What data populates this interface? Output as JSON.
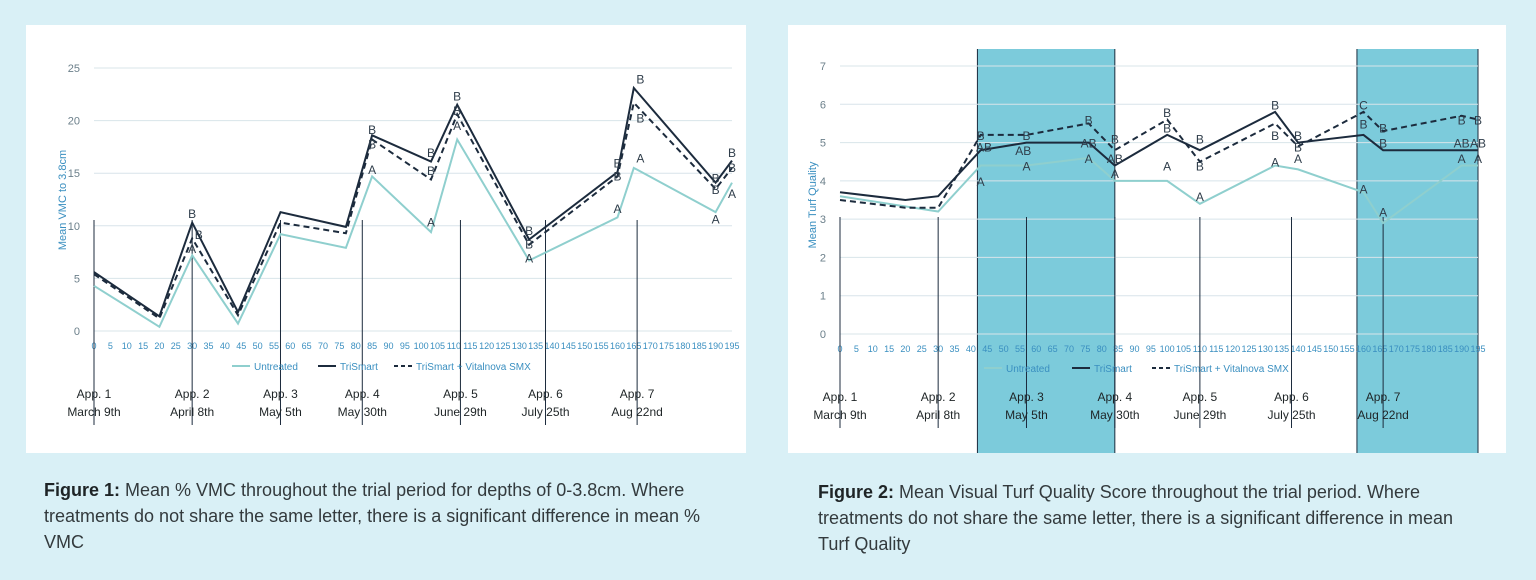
{
  "colors": {
    "untreated": "#8fcfce",
    "trismart": "#1c2b3d",
    "vitalnova": "#1c2b3d",
    "axis_text": "#3a8fc0",
    "grid": "#d8e4ea",
    "highlight": "#7ccbdb",
    "background": "#d9f0f6"
  },
  "chart_data": [
    {
      "type": "line",
      "ylabel": "Mean VMC to 3.8cm",
      "xlabel": "",
      "ylim": [
        0,
        25
      ],
      "y_ticks": [
        0,
        5,
        10,
        15,
        20,
        25
      ],
      "x_ticks": [
        0,
        5,
        10,
        15,
        20,
        25,
        30,
        35,
        40,
        45,
        50,
        55,
        60,
        65,
        70,
        75,
        80,
        85,
        90,
        95,
        100,
        105,
        110,
        115,
        120,
        125,
        130,
        135,
        140,
        145,
        150,
        155,
        160,
        165,
        170,
        175,
        180,
        185,
        190,
        195
      ],
      "grid": "horizontal",
      "legend": "bottom",
      "x": [
        0,
        20,
        30,
        44,
        57,
        77,
        85,
        103,
        111,
        133,
        160,
        165,
        190,
        195
      ],
      "series": [
        {
          "name": "Untreated",
          "style": "solid-light",
          "values": [
            4.3,
            0.4,
            7.2,
            0.7,
            9.2,
            7.9,
            14.7,
            9.4,
            18.2,
            6.7,
            10.8,
            15.5,
            11.3,
            14.1
          ]
        },
        {
          "name": "TriSmart",
          "style": "solid-dark",
          "values": [
            5.6,
            1.4,
            10.3,
            1.8,
            11.3,
            9.9,
            18.6,
            16.1,
            21.5,
            8.7,
            15.1,
            23.1,
            14.1,
            16.2
          ]
        },
        {
          "name": "TriSmart + Vitalnova SMX",
          "style": "dashed",
          "values": [
            5.4,
            1.2,
            8.8,
            1.5,
            10.3,
            9.3,
            18.2,
            14.4,
            20.6,
            8.2,
            14.7,
            21.7,
            13.5,
            15.5
          ]
        }
      ],
      "letters": [
        {
          "x": 30,
          "y": 11.2,
          "t": "B"
        },
        {
          "x": 32,
          "y": 9.2,
          "t": "B"
        },
        {
          "x": 30,
          "y": 7.9,
          "t": "A"
        },
        {
          "x": 85,
          "y": 19.2,
          "t": "B"
        },
        {
          "x": 85,
          "y": 17.8,
          "t": "B"
        },
        {
          "x": 85,
          "y": 15.4,
          "t": "A"
        },
        {
          "x": 103,
          "y": 17.0,
          "t": "B"
        },
        {
          "x": 103,
          "y": 15.3,
          "t": "B"
        },
        {
          "x": 103,
          "y": 10.4,
          "t": "A"
        },
        {
          "x": 111,
          "y": 22.4,
          "t": "B"
        },
        {
          "x": 111,
          "y": 21.0,
          "t": "B"
        },
        {
          "x": 111,
          "y": 19.6,
          "t": "A"
        },
        {
          "x": 133,
          "y": 9.6,
          "t": "B"
        },
        {
          "x": 133,
          "y": 8.3,
          "t": "B"
        },
        {
          "x": 133,
          "y": 7.0,
          "t": "A"
        },
        {
          "x": 160,
          "y": 16.0,
          "t": "B"
        },
        {
          "x": 160,
          "y": 14.8,
          "t": "B"
        },
        {
          "x": 160,
          "y": 11.7,
          "t": "A"
        },
        {
          "x": 167,
          "y": 24.0,
          "t": "B"
        },
        {
          "x": 167,
          "y": 20.3,
          "t": "B"
        },
        {
          "x": 167,
          "y": 16.5,
          "t": "A"
        },
        {
          "x": 190,
          "y": 14.6,
          "t": "B"
        },
        {
          "x": 190,
          "y": 13.5,
          "t": "B"
        },
        {
          "x": 190,
          "y": 10.7,
          "t": "A"
        },
        {
          "x": 195,
          "y": 17.0,
          "t": "B"
        },
        {
          "x": 195,
          "y": 15.6,
          "t": "B"
        },
        {
          "x": 195,
          "y": 13.1,
          "t": "A"
        }
      ],
      "applications": [
        {
          "x": 0,
          "label": "App. 1",
          "date": "March 9th"
        },
        {
          "x": 30,
          "label": "App. 2",
          "date": "April 8th"
        },
        {
          "x": 57,
          "label": "App. 3",
          "date": "May 5th"
        },
        {
          "x": 82,
          "label": "App. 4",
          "date": "May 30th"
        },
        {
          "x": 112,
          "label": "App. 5",
          "date": "June 29th"
        },
        {
          "x": 138,
          "label": "App. 6",
          "date": "July 25th"
        },
        {
          "x": 166,
          "label": "App. 7",
          "date": "Aug 22nd"
        }
      ]
    },
    {
      "type": "line",
      "ylabel": "Mean Turf Quality",
      "xlabel": "",
      "ylim": [
        0,
        7
      ],
      "y_ticks": [
        0,
        1,
        2,
        3,
        4,
        5,
        6,
        7
      ],
      "x_ticks": [
        0,
        5,
        10,
        15,
        20,
        25,
        30,
        35,
        40,
        45,
        50,
        55,
        60,
        65,
        70,
        75,
        80,
        85,
        90,
        95,
        100,
        105,
        110,
        115,
        120,
        125,
        130,
        135,
        140,
        145,
        150,
        155,
        160,
        165,
        170,
        175,
        180,
        185,
        190,
        195
      ],
      "grid": "horizontal",
      "legend": "bottom",
      "highlight_ranges": [
        [
          42,
          84
        ],
        [
          158,
          195
        ]
      ],
      "series": [
        {
          "name": "Untreated",
          "style": "solid-light",
          "x": [
            0,
            30,
            43,
            57,
            76,
            84,
            100,
            110,
            133,
            140,
            160,
            166,
            190,
            195
          ],
          "values": [
            3.6,
            3.2,
            4.4,
            4.4,
            4.6,
            4.0,
            4.0,
            3.4,
            4.4,
            4.3,
            3.7,
            2.9,
            4.4,
            4.4
          ]
        },
        {
          "name": "TriSmart",
          "style": "solid-dark",
          "x": [
            0,
            20,
            30,
            43,
            57,
            76,
            84,
            100,
            110,
            133,
            140,
            160,
            166,
            190,
            195
          ],
          "values": [
            3.7,
            3.5,
            3.6,
            4.8,
            5.0,
            5.0,
            4.4,
            5.2,
            4.8,
            5.8,
            5.0,
            5.2,
            4.8,
            4.8,
            4.8
          ]
        },
        {
          "name": "TriSmart + Vitalnova SMX",
          "style": "dashed",
          "x": [
            0,
            20,
            30,
            43,
            57,
            76,
            84,
            100,
            110,
            133,
            140,
            160,
            166,
            190,
            195
          ],
          "values": [
            3.5,
            3.3,
            3.3,
            5.2,
            5.2,
            5.5,
            4.8,
            5.6,
            4.5,
            5.5,
            4.9,
            5.8,
            5.3,
            5.7,
            5.6
          ]
        }
      ],
      "letters": [
        {
          "x": 43,
          "y": 5.2,
          "t": "B"
        },
        {
          "x": 44,
          "y": 4.9,
          "t": "AB"
        },
        {
          "x": 43,
          "y": 4.0,
          "t": "A"
        },
        {
          "x": 57,
          "y": 5.2,
          "t": "B"
        },
        {
          "x": 56,
          "y": 4.8,
          "t": "AB"
        },
        {
          "x": 57,
          "y": 4.4,
          "t": "A"
        },
        {
          "x": 76,
          "y": 5.6,
          "t": "B"
        },
        {
          "x": 76,
          "y": 5.0,
          "t": "AB"
        },
        {
          "x": 76,
          "y": 4.6,
          "t": "A"
        },
        {
          "x": 84,
          "y": 5.1,
          "t": "B"
        },
        {
          "x": 84,
          "y": 4.6,
          "t": "AB"
        },
        {
          "x": 84,
          "y": 4.2,
          "t": "A"
        },
        {
          "x": 100,
          "y": 5.8,
          "t": "B"
        },
        {
          "x": 100,
          "y": 5.4,
          "t": "B"
        },
        {
          "x": 100,
          "y": 4.4,
          "t": "A"
        },
        {
          "x": 110,
          "y": 5.1,
          "t": "B"
        },
        {
          "x": 110,
          "y": 4.4,
          "t": "B"
        },
        {
          "x": 110,
          "y": 3.6,
          "t": "A"
        },
        {
          "x": 133,
          "y": 6.0,
          "t": "B"
        },
        {
          "x": 133,
          "y": 5.2,
          "t": "B"
        },
        {
          "x": 133,
          "y": 4.5,
          "t": "A"
        },
        {
          "x": 140,
          "y": 5.2,
          "t": "B"
        },
        {
          "x": 140,
          "y": 4.9,
          "t": "B"
        },
        {
          "x": 140,
          "y": 4.6,
          "t": "A"
        },
        {
          "x": 160,
          "y": 6.0,
          "t": "C"
        },
        {
          "x": 160,
          "y": 5.5,
          "t": "B"
        },
        {
          "x": 160,
          "y": 3.8,
          "t": "A"
        },
        {
          "x": 166,
          "y": 5.4,
          "t": "B"
        },
        {
          "x": 166,
          "y": 5.0,
          "t": "B"
        },
        {
          "x": 166,
          "y": 3.2,
          "t": "A"
        },
        {
          "x": 190,
          "y": 5.6,
          "t": "B"
        },
        {
          "x": 190,
          "y": 5.0,
          "t": "AB"
        },
        {
          "x": 190,
          "y": 4.6,
          "t": "A"
        },
        {
          "x": 195,
          "y": 5.6,
          "t": "B"
        },
        {
          "x": 195,
          "y": 5.0,
          "t": "AB"
        },
        {
          "x": 195,
          "y": 4.6,
          "t": "A"
        }
      ],
      "applications": [
        {
          "x": 0,
          "label": "App. 1",
          "date": "March 9th"
        },
        {
          "x": 30,
          "label": "App. 2",
          "date": "April 8th"
        },
        {
          "x": 57,
          "label": "App. 3",
          "date": "May 5th"
        },
        {
          "x": 84,
          "label": "App. 4",
          "date": "May 30th"
        },
        {
          "x": 110,
          "label": "App. 5",
          "date": "June 29th"
        },
        {
          "x": 138,
          "label": "App. 6",
          "date": "July 25th"
        },
        {
          "x": 166,
          "label": "App. 7",
          "date": "Aug 22nd"
        }
      ]
    }
  ],
  "captions": {
    "fig1_label": "Figure 1:",
    "fig1_text": " Mean % VMC throughout the trial period for depths of 0-3.8cm. Where treatments do not share the same letter, there is a significant difference in mean % VMC",
    "fig2_label": "Figure 2:",
    "fig2_text": " Mean Visual Turf Quality Score throughout the trial period. Where treatments do not share the same letter, there is a significant difference in mean Turf Quality"
  }
}
